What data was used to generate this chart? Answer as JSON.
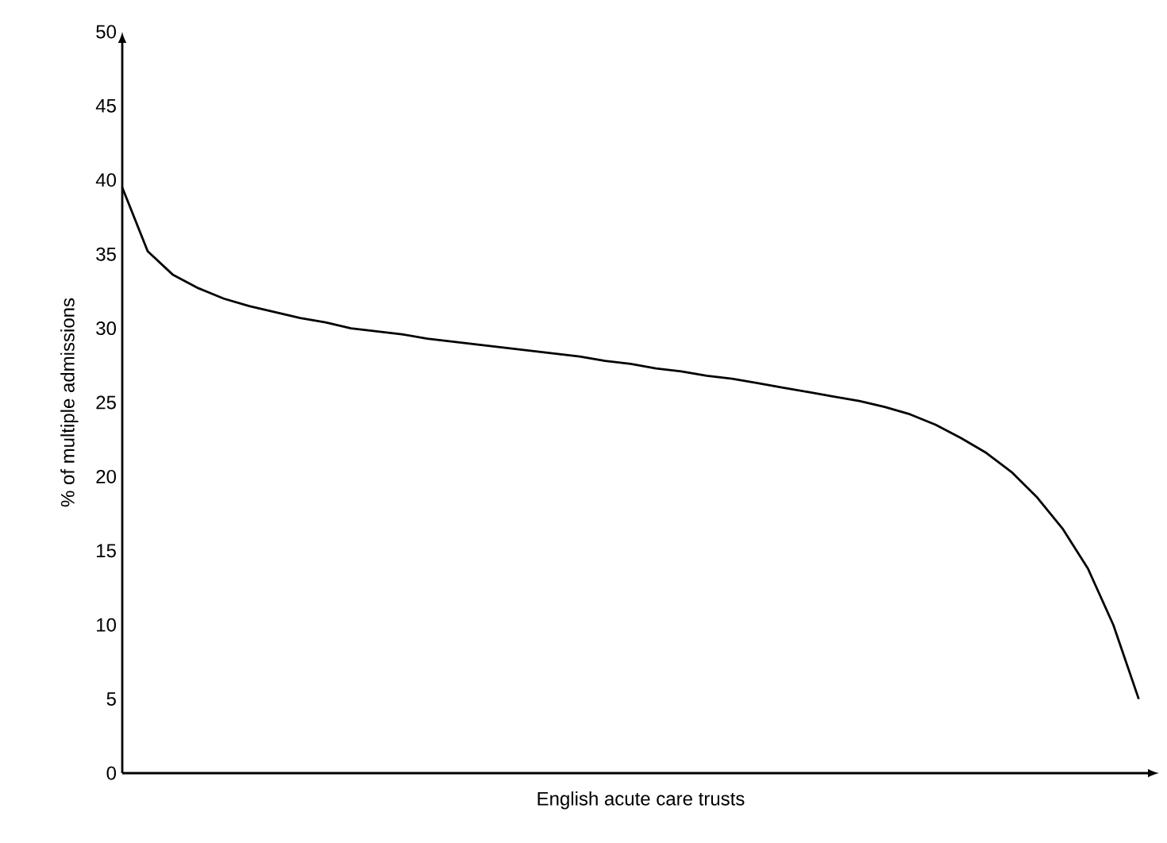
{
  "chart_data": {
    "type": "line",
    "xlabel": "English acute care trusts",
    "ylabel": "% of multiple admissions",
    "categories": [
      null,
      null,
      null,
      null,
      null,
      null,
      null,
      null,
      null,
      null,
      null,
      null,
      null,
      null,
      null,
      null,
      null,
      null,
      null,
      null,
      null,
      null,
      null,
      null,
      null,
      null,
      null,
      null,
      null,
      null,
      null,
      null,
      null,
      null,
      null,
      null,
      null,
      null,
      null,
      null,
      null
    ],
    "series": [
      {
        "color": "#000000",
        "values": [
          39.5,
          35.2,
          33.6,
          32.7,
          32.0,
          31.5,
          31.1,
          30.7,
          30.4,
          30.0,
          29.8,
          29.6,
          29.3,
          29.1,
          28.9,
          28.7,
          28.5,
          28.3,
          28.1,
          27.8,
          27.6,
          27.3,
          27.1,
          26.8,
          26.6,
          26.3,
          26.0,
          25.7,
          25.4,
          25.1,
          24.7,
          24.2,
          23.5,
          22.6,
          21.6,
          20.3,
          18.6,
          16.5,
          13.8,
          10.0,
          5.0
        ]
      }
    ],
    "ylim": [
      0,
      50
    ],
    "yticks": [
      0,
      5,
      10,
      15,
      20,
      25,
      30,
      35,
      40,
      45,
      50
    ],
    "grid": false,
    "marker": "none",
    "line_style": "solid",
    "tick_labels": "y"
  }
}
